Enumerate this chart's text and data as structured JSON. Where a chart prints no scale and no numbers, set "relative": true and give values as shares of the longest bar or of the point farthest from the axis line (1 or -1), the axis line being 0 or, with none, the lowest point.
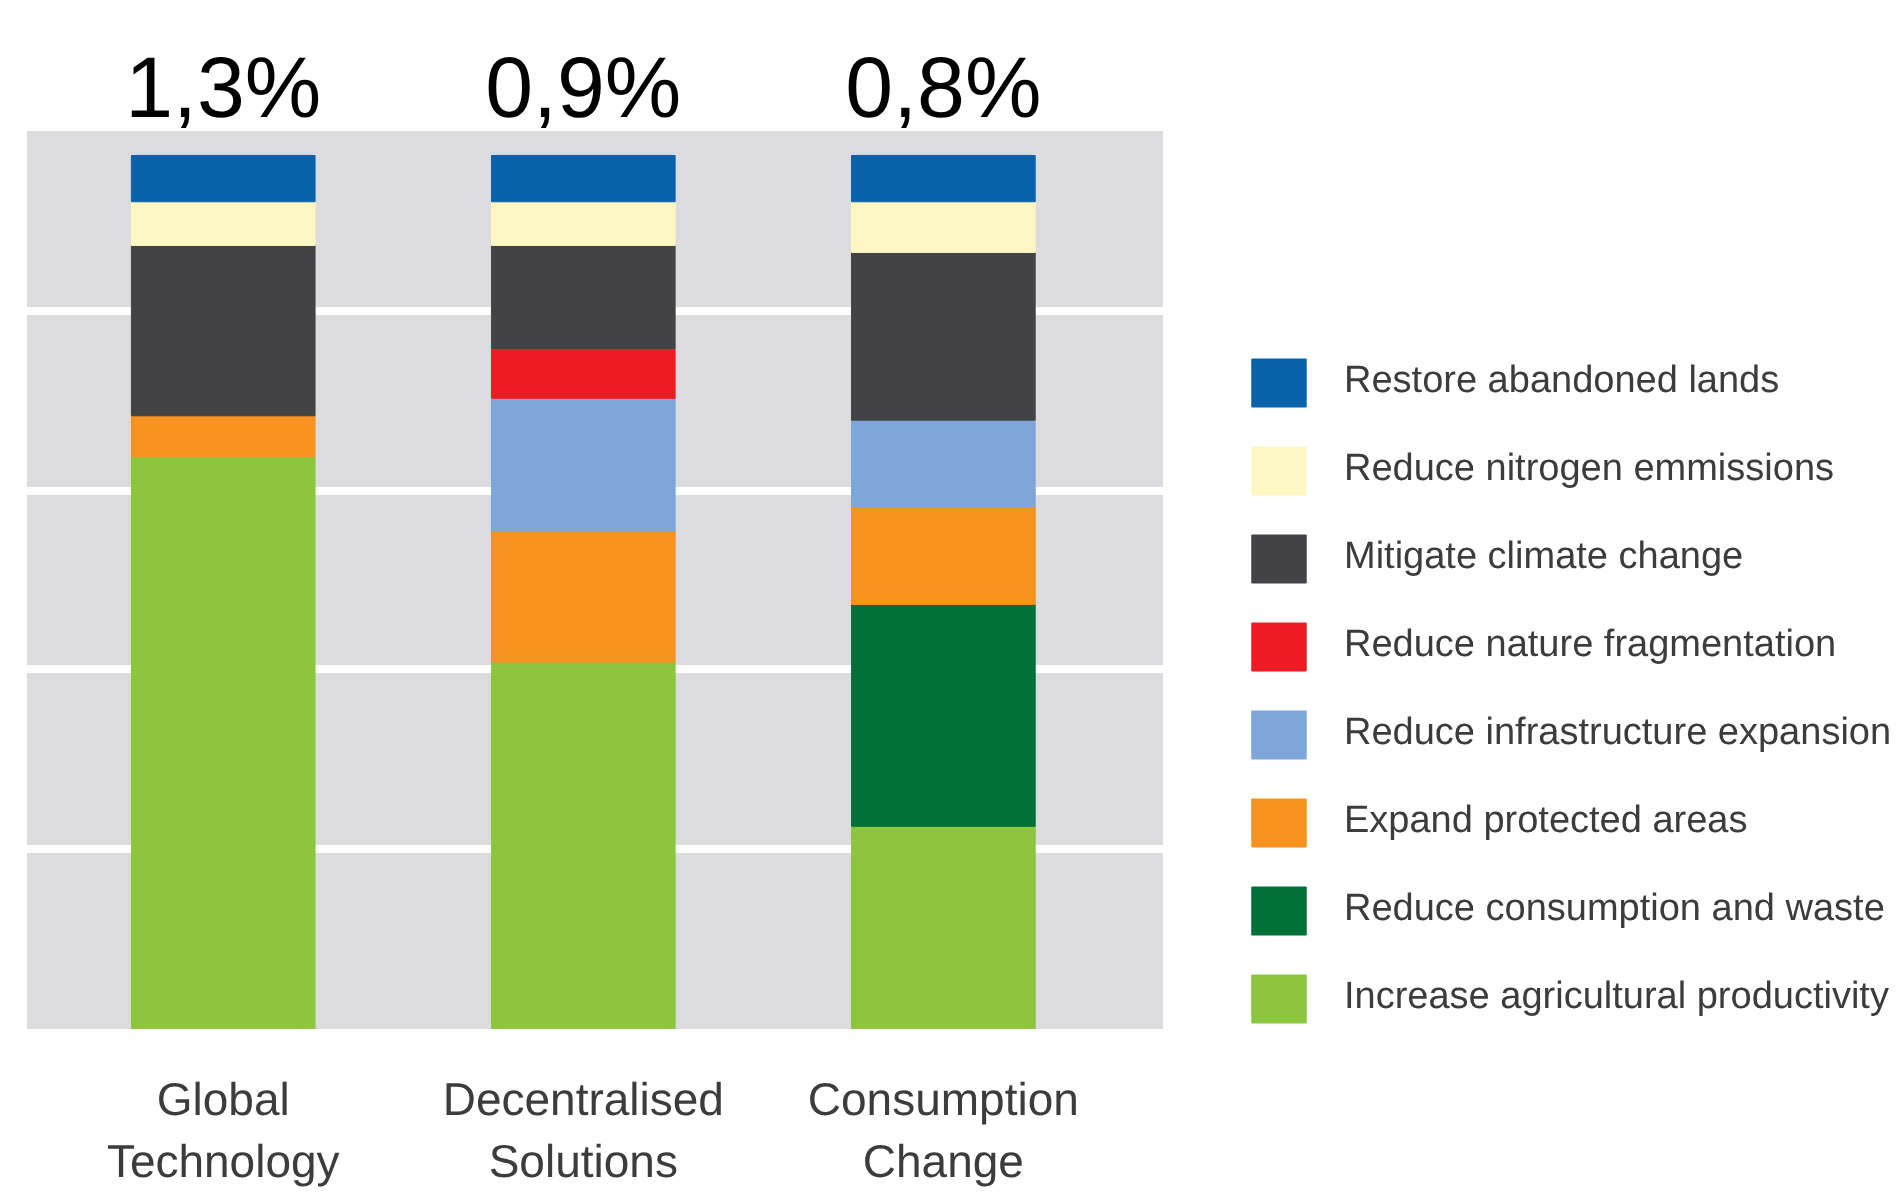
{
  "chart_data": {
    "type": "bar",
    "stacked": true,
    "relative": true,
    "categories": [
      "Global Technology",
      "Decentralised Solutions",
      "Consumption Change"
    ],
    "series": [
      {
        "name": "Increase agricultural productivity",
        "color": "#8cc63f",
        "values": [
          0.655,
          0.42,
          0.232
        ]
      },
      {
        "name": "Reduce consumption and waste",
        "color": "#006f38",
        "values": [
          null,
          null,
          0.254
        ]
      },
      {
        "name": "Expand protected areas",
        "color": "#f6921e",
        "values": [
          0.047,
          0.15,
          0.112
        ]
      },
      {
        "name": "Reduce infrastructure expansion",
        "color": "#7da7d8",
        "values": [
          null,
          0.152,
          0.099
        ]
      },
      {
        "name": "Reduce nature fragmentation",
        "color": "#ed1c24",
        "values": [
          null,
          0.057,
          null
        ]
      },
      {
        "name": "Mitigate climate change",
        "color": "#434345",
        "values": [
          0.195,
          0.118,
          0.192
        ]
      },
      {
        "name": "Reduce nitrogen emmissions",
        "color": "#fdf7c3",
        "values": [
          0.05,
          0.05,
          0.058
        ]
      },
      {
        "name": "Restore abandoned lands",
        "color": "#0a62ab",
        "values": [
          0.053,
          0.053,
          0.053
        ]
      }
    ],
    "totals": [
      "1,3%",
      "0,9%",
      "0,8%"
    ],
    "grid": "y",
    "legend": "right"
  }
}
